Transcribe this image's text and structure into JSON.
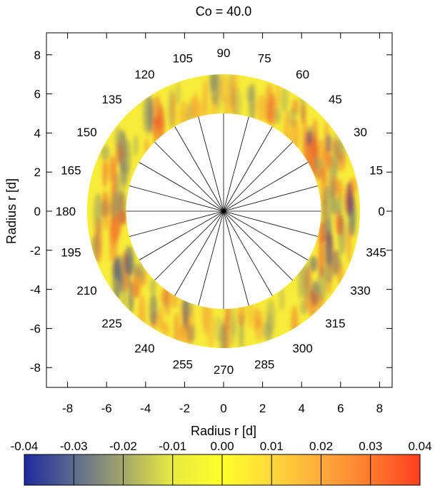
{
  "chart_data": {
    "type": "heatmap",
    "subtype": "polar-annulus",
    "title": "Co = 40.0",
    "xlabel": "Radius r [d]",
    "ylabel": "Radius r [d]",
    "xlim": [
      -9,
      9
    ],
    "ylim": [
      -9,
      9
    ],
    "x_ticks": [
      "-8",
      "-6",
      "-4",
      "-2",
      "0",
      "2",
      "4",
      "6",
      "8"
    ],
    "y_ticks": [
      "-8",
      "-6",
      "-4",
      "-2",
      "0",
      "2",
      "4",
      "6",
      "8"
    ],
    "grid": false,
    "inner_radius": 5,
    "outer_radius": 7,
    "angle_labels": [
      "0",
      "15",
      "30",
      "45",
      "60",
      "75",
      "90",
      "105",
      "120",
      "135",
      "150",
      "165",
      "180",
      "195",
      "210",
      "225",
      "240",
      "255",
      "270",
      "285",
      "300",
      "315",
      "330",
      "345"
    ],
    "colorbar": {
      "ticks": [
        "-0.04",
        "-0.03",
        "-0.02",
        "-0.01",
        "0.00",
        "0.01",
        "0.02",
        "0.03",
        "0.04"
      ],
      "range": [
        -0.04,
        0.04
      ],
      "colors": [
        "#1f2a9a",
        "#5c6a90",
        "#a3a66a",
        "#e8ea40",
        "#ffff2a",
        "#ffd83a",
        "#ffab3a",
        "#ff7a2e",
        "#ff3e1e"
      ]
    },
    "field_colors": {
      "base": "#f8ec3a",
      "warm": "#f2772c",
      "hot": "#e8402a",
      "cool": "#8b8d6a",
      "cold": "#2a3c8a"
    }
  }
}
